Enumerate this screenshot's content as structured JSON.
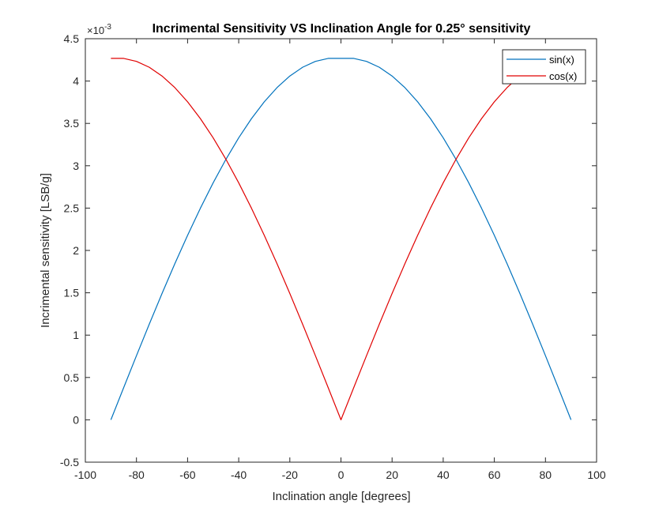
{
  "chart_data": {
    "type": "line",
    "title": "Incrimental Sensitivity VS Inclination Angle for 0.25° sensitivity",
    "xlabel": "Inclination angle [degrees]",
    "ylabel": "Incrimental sensitivity [LSB/g]",
    "y_exponent_label": "×10",
    "y_exponent_power": "-3",
    "xlim": [
      -100,
      100
    ],
    "ylim": [
      -0.5,
      4.5
    ],
    "x_ticks": [
      -100,
      -80,
      -60,
      -40,
      -20,
      0,
      20,
      40,
      60,
      80,
      100
    ],
    "x_tick_labels": [
      "-100",
      "-80",
      "-60",
      "-40",
      "-20",
      "0",
      "20",
      "40",
      "60",
      "80",
      "100"
    ],
    "y_ticks": [
      -0.5,
      0,
      0.5,
      1,
      1.5,
      2,
      2.5,
      3,
      3.5,
      4,
      4.5
    ],
    "y_tick_labels": [
      "-0.5",
      "0",
      "0.5",
      "1",
      "1.5",
      "2",
      "2.5",
      "3",
      "3.5",
      "4",
      "4.5"
    ],
    "grid": false,
    "legend_position": "top-right",
    "x": [
      -90,
      -85,
      -80,
      -75,
      -70,
      -65,
      -60,
      -55,
      -50,
      -45,
      -40,
      -35,
      -30,
      -25,
      -20,
      -15,
      -10,
      -5,
      0,
      5,
      10,
      15,
      20,
      25,
      30,
      35,
      40,
      45,
      50,
      55,
      60,
      65,
      70,
      75,
      80,
      85,
      90
    ],
    "series": [
      {
        "name": "sin(x)",
        "color": "#0072BD",
        "values": [
          0,
          0.3803,
          0.7576,
          1.1289,
          1.4914,
          1.8423,
          2.1788,
          2.4983,
          2.7982,
          3.0761,
          3.3295,
          3.5565,
          3.7549,
          3.9231,
          4.0595,
          4.163,
          4.2326,
          4.2676,
          4.2676,
          4.2676,
          4.2326,
          4.163,
          4.0595,
          3.9231,
          3.7549,
          3.5565,
          3.3295,
          3.0761,
          2.7982,
          2.4983,
          2.1788,
          1.8423,
          1.4914,
          1.1289,
          0.7576,
          0.3803,
          0
        ]
      },
      {
        "name": "cos(x)",
        "color": "#E00000",
        "values": [
          4.2676,
          4.2676,
          4.2326,
          4.163,
          4.0595,
          3.9231,
          3.7549,
          3.5565,
          3.3295,
          3.0761,
          2.7982,
          2.4983,
          2.1788,
          1.8423,
          1.4914,
          1.1289,
          0.7576,
          0.3803,
          0,
          0.3803,
          0.7576,
          1.1289,
          1.4914,
          1.8423,
          2.1788,
          2.4983,
          2.7982,
          3.0761,
          3.3295,
          3.5565,
          3.7549,
          3.9231,
          4.0595,
          4.163,
          4.2326,
          4.2676,
          4.2676
        ]
      }
    ]
  }
}
